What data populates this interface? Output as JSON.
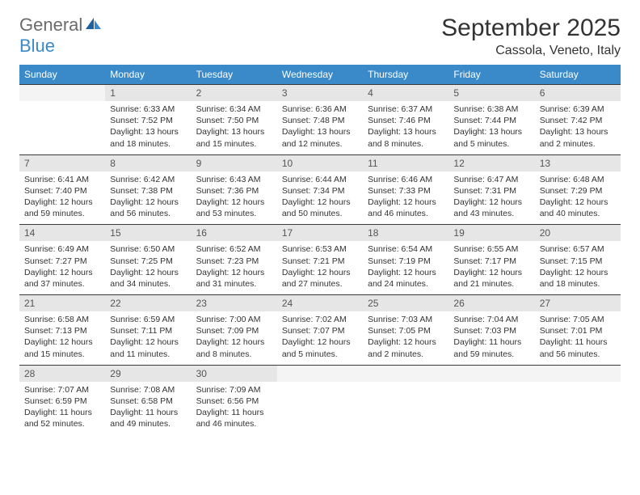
{
  "brand": {
    "word1": "General",
    "word2": "Blue"
  },
  "title": {
    "month": "September 2025",
    "location": "Cassola, Veneto, Italy"
  },
  "weekdays": [
    "Sunday",
    "Monday",
    "Tuesday",
    "Wednesday",
    "Thursday",
    "Friday",
    "Saturday"
  ],
  "colors": {
    "header_bg": "#3a8ac9",
    "header_text": "#ffffff",
    "daynum_bg": "#e6e6e6",
    "text": "#333333",
    "rule": "#3a3a3a"
  },
  "weeks": [
    [
      {
        "n": "",
        "lines": [
          "",
          "",
          "",
          ""
        ]
      },
      {
        "n": "1",
        "lines": [
          "Sunrise: 6:33 AM",
          "Sunset: 7:52 PM",
          "Daylight: 13 hours",
          "and 18 minutes."
        ]
      },
      {
        "n": "2",
        "lines": [
          "Sunrise: 6:34 AM",
          "Sunset: 7:50 PM",
          "Daylight: 13 hours",
          "and 15 minutes."
        ]
      },
      {
        "n": "3",
        "lines": [
          "Sunrise: 6:36 AM",
          "Sunset: 7:48 PM",
          "Daylight: 13 hours",
          "and 12 minutes."
        ]
      },
      {
        "n": "4",
        "lines": [
          "Sunrise: 6:37 AM",
          "Sunset: 7:46 PM",
          "Daylight: 13 hours",
          "and 8 minutes."
        ]
      },
      {
        "n": "5",
        "lines": [
          "Sunrise: 6:38 AM",
          "Sunset: 7:44 PM",
          "Daylight: 13 hours",
          "and 5 minutes."
        ]
      },
      {
        "n": "6",
        "lines": [
          "Sunrise: 6:39 AM",
          "Sunset: 7:42 PM",
          "Daylight: 13 hours",
          "and 2 minutes."
        ]
      }
    ],
    [
      {
        "n": "7",
        "lines": [
          "Sunrise: 6:41 AM",
          "Sunset: 7:40 PM",
          "Daylight: 12 hours",
          "and 59 minutes."
        ]
      },
      {
        "n": "8",
        "lines": [
          "Sunrise: 6:42 AM",
          "Sunset: 7:38 PM",
          "Daylight: 12 hours",
          "and 56 minutes."
        ]
      },
      {
        "n": "9",
        "lines": [
          "Sunrise: 6:43 AM",
          "Sunset: 7:36 PM",
          "Daylight: 12 hours",
          "and 53 minutes."
        ]
      },
      {
        "n": "10",
        "lines": [
          "Sunrise: 6:44 AM",
          "Sunset: 7:34 PM",
          "Daylight: 12 hours",
          "and 50 minutes."
        ]
      },
      {
        "n": "11",
        "lines": [
          "Sunrise: 6:46 AM",
          "Sunset: 7:33 PM",
          "Daylight: 12 hours",
          "and 46 minutes."
        ]
      },
      {
        "n": "12",
        "lines": [
          "Sunrise: 6:47 AM",
          "Sunset: 7:31 PM",
          "Daylight: 12 hours",
          "and 43 minutes."
        ]
      },
      {
        "n": "13",
        "lines": [
          "Sunrise: 6:48 AM",
          "Sunset: 7:29 PM",
          "Daylight: 12 hours",
          "and 40 minutes."
        ]
      }
    ],
    [
      {
        "n": "14",
        "lines": [
          "Sunrise: 6:49 AM",
          "Sunset: 7:27 PM",
          "Daylight: 12 hours",
          "and 37 minutes."
        ]
      },
      {
        "n": "15",
        "lines": [
          "Sunrise: 6:50 AM",
          "Sunset: 7:25 PM",
          "Daylight: 12 hours",
          "and 34 minutes."
        ]
      },
      {
        "n": "16",
        "lines": [
          "Sunrise: 6:52 AM",
          "Sunset: 7:23 PM",
          "Daylight: 12 hours",
          "and 31 minutes."
        ]
      },
      {
        "n": "17",
        "lines": [
          "Sunrise: 6:53 AM",
          "Sunset: 7:21 PM",
          "Daylight: 12 hours",
          "and 27 minutes."
        ]
      },
      {
        "n": "18",
        "lines": [
          "Sunrise: 6:54 AM",
          "Sunset: 7:19 PM",
          "Daylight: 12 hours",
          "and 24 minutes."
        ]
      },
      {
        "n": "19",
        "lines": [
          "Sunrise: 6:55 AM",
          "Sunset: 7:17 PM",
          "Daylight: 12 hours",
          "and 21 minutes."
        ]
      },
      {
        "n": "20",
        "lines": [
          "Sunrise: 6:57 AM",
          "Sunset: 7:15 PM",
          "Daylight: 12 hours",
          "and 18 minutes."
        ]
      }
    ],
    [
      {
        "n": "21",
        "lines": [
          "Sunrise: 6:58 AM",
          "Sunset: 7:13 PM",
          "Daylight: 12 hours",
          "and 15 minutes."
        ]
      },
      {
        "n": "22",
        "lines": [
          "Sunrise: 6:59 AM",
          "Sunset: 7:11 PM",
          "Daylight: 12 hours",
          "and 11 minutes."
        ]
      },
      {
        "n": "23",
        "lines": [
          "Sunrise: 7:00 AM",
          "Sunset: 7:09 PM",
          "Daylight: 12 hours",
          "and 8 minutes."
        ]
      },
      {
        "n": "24",
        "lines": [
          "Sunrise: 7:02 AM",
          "Sunset: 7:07 PM",
          "Daylight: 12 hours",
          "and 5 minutes."
        ]
      },
      {
        "n": "25",
        "lines": [
          "Sunrise: 7:03 AM",
          "Sunset: 7:05 PM",
          "Daylight: 12 hours",
          "and 2 minutes."
        ]
      },
      {
        "n": "26",
        "lines": [
          "Sunrise: 7:04 AM",
          "Sunset: 7:03 PM",
          "Daylight: 11 hours",
          "and 59 minutes."
        ]
      },
      {
        "n": "27",
        "lines": [
          "Sunrise: 7:05 AM",
          "Sunset: 7:01 PM",
          "Daylight: 11 hours",
          "and 56 minutes."
        ]
      }
    ],
    [
      {
        "n": "28",
        "lines": [
          "Sunrise: 7:07 AM",
          "Sunset: 6:59 PM",
          "Daylight: 11 hours",
          "and 52 minutes."
        ]
      },
      {
        "n": "29",
        "lines": [
          "Sunrise: 7:08 AM",
          "Sunset: 6:58 PM",
          "Daylight: 11 hours",
          "and 49 minutes."
        ]
      },
      {
        "n": "30",
        "lines": [
          "Sunrise: 7:09 AM",
          "Sunset: 6:56 PM",
          "Daylight: 11 hours",
          "and 46 minutes."
        ]
      },
      {
        "n": "",
        "lines": [
          "",
          "",
          "",
          ""
        ]
      },
      {
        "n": "",
        "lines": [
          "",
          "",
          "",
          ""
        ]
      },
      {
        "n": "",
        "lines": [
          "",
          "",
          "",
          ""
        ]
      },
      {
        "n": "",
        "lines": [
          "",
          "",
          "",
          ""
        ]
      }
    ]
  ]
}
